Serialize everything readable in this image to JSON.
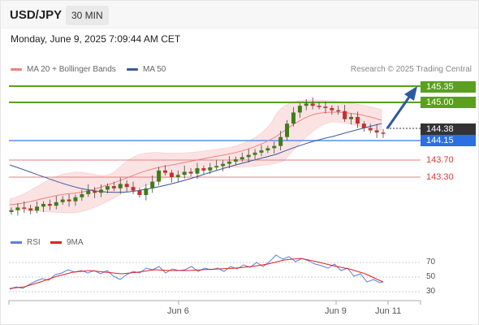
{
  "header": {
    "symbol": "USD/JPY",
    "timeframe": "30 MIN"
  },
  "timestamp": "Monday, June 9, 2025 7:09:44 AM CET",
  "legend": {
    "items": [
      {
        "label": "MA 20 + Bollinger Bands",
        "color": "#f08080"
      },
      {
        "label": "MA 50",
        "color": "#3a5a9a"
      }
    ],
    "credit": "Research © 2025 Trading Central"
  },
  "price_levels": [
    {
      "label": "145.35",
      "color": "#5aa01e",
      "style": "filled"
    },
    {
      "label": "145.00",
      "color": "#5aa01e",
      "style": "filled"
    },
    {
      "label": "144.38",
      "color": "#333333",
      "style": "filled"
    },
    {
      "label": "144.15",
      "color": "#2c6fe0",
      "style": "filled"
    },
    {
      "label": "143.70",
      "color": "#d23c3c",
      "style": "text"
    },
    {
      "label": "143.30",
      "color": "#d23c3c",
      "style": "text"
    }
  ],
  "rsi_panel": {
    "legend": [
      {
        "label": "RSI",
        "color": "#5b7fe0"
      },
      {
        "label": "9MA",
        "color": "#e02020"
      }
    ],
    "ticks": [
      "70",
      "50",
      "30"
    ]
  },
  "x_axis": {
    "ticks": [
      "Jun 6",
      "Jun 9",
      "Jun 11"
    ]
  },
  "chart_data": {
    "type": "line",
    "title": "USD/JPY",
    "timeframe": "30 MIN",
    "y_range": [
      142.6,
      145.55
    ],
    "close_prices": [
      142.66,
      142.72,
      142.7,
      142.65,
      142.74,
      142.8,
      142.76,
      142.84,
      142.9,
      142.86,
      142.95,
      143.02,
      143.1,
      143.05,
      143.12,
      143.2,
      143.15,
      143.25,
      143.18,
      143.1,
      143.0,
      143.15,
      143.3,
      143.55,
      143.5,
      143.4,
      143.45,
      143.52,
      143.48,
      143.6,
      143.55,
      143.62,
      143.65,
      143.7,
      143.75,
      143.8,
      143.85,
      143.9,
      143.95,
      144.0,
      144.05,
      144.1,
      144.3,
      144.6,
      144.85,
      145.0,
      145.05,
      145.0,
      144.98,
      144.95,
      144.9,
      144.88,
      144.7,
      144.75,
      144.6,
      144.5,
      144.45,
      144.4,
      144.38
    ],
    "levels": {
      "resistance_2": 145.35,
      "resistance_1": 145.0,
      "last_price": 144.38,
      "pivot": 144.15,
      "support_1": 143.7,
      "support_2": 143.3
    },
    "rsi_ticks": [
      70,
      50,
      30
    ],
    "x_ticks": [
      "Jun 6",
      "Jun 9",
      "Jun 11"
    ]
  }
}
